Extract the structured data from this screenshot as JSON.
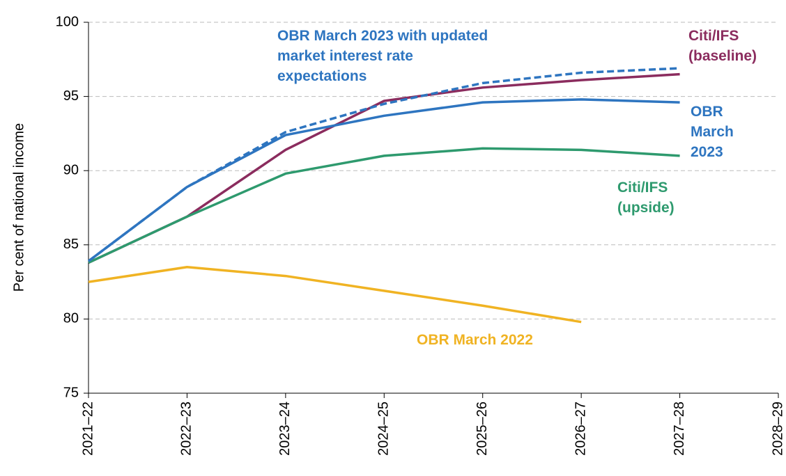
{
  "chart_data": {
    "type": "line",
    "ylabel": "Per cent of national income",
    "categories": [
      "2021–22",
      "2022–23",
      "2023–24",
      "2024–25",
      "2025–26",
      "2026–27",
      "2027–28",
      "2028–29"
    ],
    "ylim": [
      75,
      100
    ],
    "yticks": [
      75,
      80,
      85,
      90,
      95,
      100
    ],
    "grid": true,
    "series": [
      {
        "name": "OBR March 2022",
        "color": "#f0b323",
        "values": [
          82.5,
          83.5,
          82.9,
          81.9,
          80.9,
          79.8,
          null,
          null
        ]
      },
      {
        "name": "Citi/IFS (baseline)",
        "color": "#8b2c5e",
        "values": [
          83.8,
          86.9,
          91.4,
          94.7,
          95.6,
          96.1,
          96.5,
          null
        ]
      },
      {
        "name": "Citi/IFS (upside)",
        "color": "#2e9a6e",
        "values": [
          83.8,
          86.9,
          89.8,
          91.0,
          91.5,
          91.4,
          91.0,
          null
        ]
      },
      {
        "name": "OBR March 2023",
        "color": "#2e75c0",
        "values": [
          83.9,
          88.9,
          92.4,
          93.7,
          94.6,
          94.8,
          94.6,
          null
        ]
      },
      {
        "name": "OBR March 2023 with updated market interest rate expectations",
        "color": "#2e75c0",
        "dashed": true,
        "values": [
          83.9,
          88.9,
          92.6,
          94.5,
          95.9,
          96.6,
          96.9,
          null
        ]
      }
    ]
  }
}
